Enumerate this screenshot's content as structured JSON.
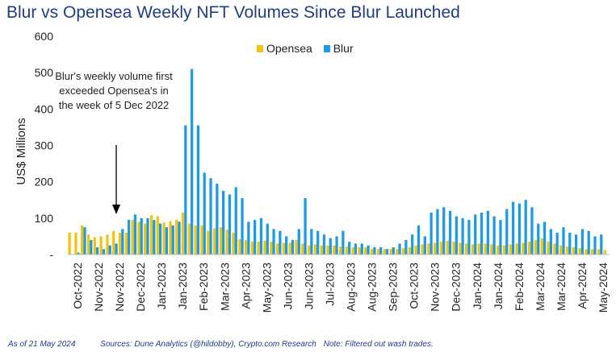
{
  "title": "Blur vs Opensea Weekly NFT Volumes Since Blur Launched",
  "footer": {
    "as_of": "As of 21 May 2024",
    "sources": "Sources: Dune Analytics (@hildobby), Crypto.com Research",
    "note": "Note: Filtered out wash trades."
  },
  "annotation": "Blur's weekly volume first exceeded Opensea's in the week of 5 Dec 2022",
  "chart_data": {
    "type": "bar",
    "ylabel": "US$ Millions",
    "ylim": [
      0,
      600
    ],
    "yticks": [
      "-",
      "100",
      "200",
      "300",
      "400",
      "500",
      "600"
    ],
    "legend_position": "top-center",
    "grid": false,
    "x_tick_labels": [
      "Oct-2022",
      "Nov-2022",
      "Nov-2022",
      "Dec-2022",
      "Jan-2023",
      "Jan-2023",
      "Feb-2023",
      "Mar-2023",
      "Apr-2023",
      "May-2023",
      "Jun-2023",
      "Jun-2023",
      "Jul-2023",
      "Aug-2023",
      "Aug-2023",
      "Sep-2023",
      "Oct-2023",
      "Nov-2023",
      "Dec-2023",
      "Jan-2024",
      "Jan-2024",
      "Feb-2024",
      "Mar-2024",
      "Mar-2024",
      "Apr-2024",
      "May-2024"
    ],
    "series": [
      {
        "name": "Opensea",
        "color": "#f2c40f",
        "values": [
          60,
          60,
          80,
          55,
          48,
          50,
          55,
          65,
          60,
          60,
          95,
          90,
          85,
          108,
          105,
          88,
          92,
          95,
          115,
          85,
          80,
          80,
          65,
          72,
          75,
          68,
          60,
          42,
          40,
          35,
          35,
          38,
          35,
          30,
          32,
          32,
          40,
          30,
          25,
          28,
          25,
          25,
          25,
          22,
          22,
          20,
          20,
          20,
          15,
          15,
          15,
          15,
          15,
          18,
          20,
          25,
          28,
          30,
          32,
          35,
          38,
          35,
          32,
          30,
          28,
          30,
          30,
          28,
          25,
          25,
          28,
          30,
          32,
          35,
          40,
          45,
          35,
          30,
          25,
          22,
          20,
          18,
          15,
          15,
          15,
          12
        ]
      },
      {
        "name": "Blur",
        "color": "#1e9be5",
        "values": [
          0,
          5,
          75,
          40,
          20,
          15,
          25,
          30,
          70,
          95,
          110,
          100,
          100,
          95,
          85,
          75,
          80,
          90,
          355,
          510,
          355,
          225,
          210,
          195,
          175,
          165,
          185,
          155,
          90,
          95,
          100,
          85,
          70,
          65,
          50,
          40,
          70,
          155,
          70,
          65,
          55,
          45,
          50,
          65,
          35,
          30,
          30,
          25,
          20,
          20,
          15,
          20,
          30,
          40,
          55,
          80,
          50,
          115,
          125,
          130,
          120,
          105,
          100,
          95,
          110,
          115,
          120,
          105,
          95,
          125,
          145,
          140,
          150,
          130,
          85,
          90,
          70,
          60,
          75,
          60,
          55,
          70,
          65,
          50,
          55,
          0
        ]
      }
    ]
  }
}
